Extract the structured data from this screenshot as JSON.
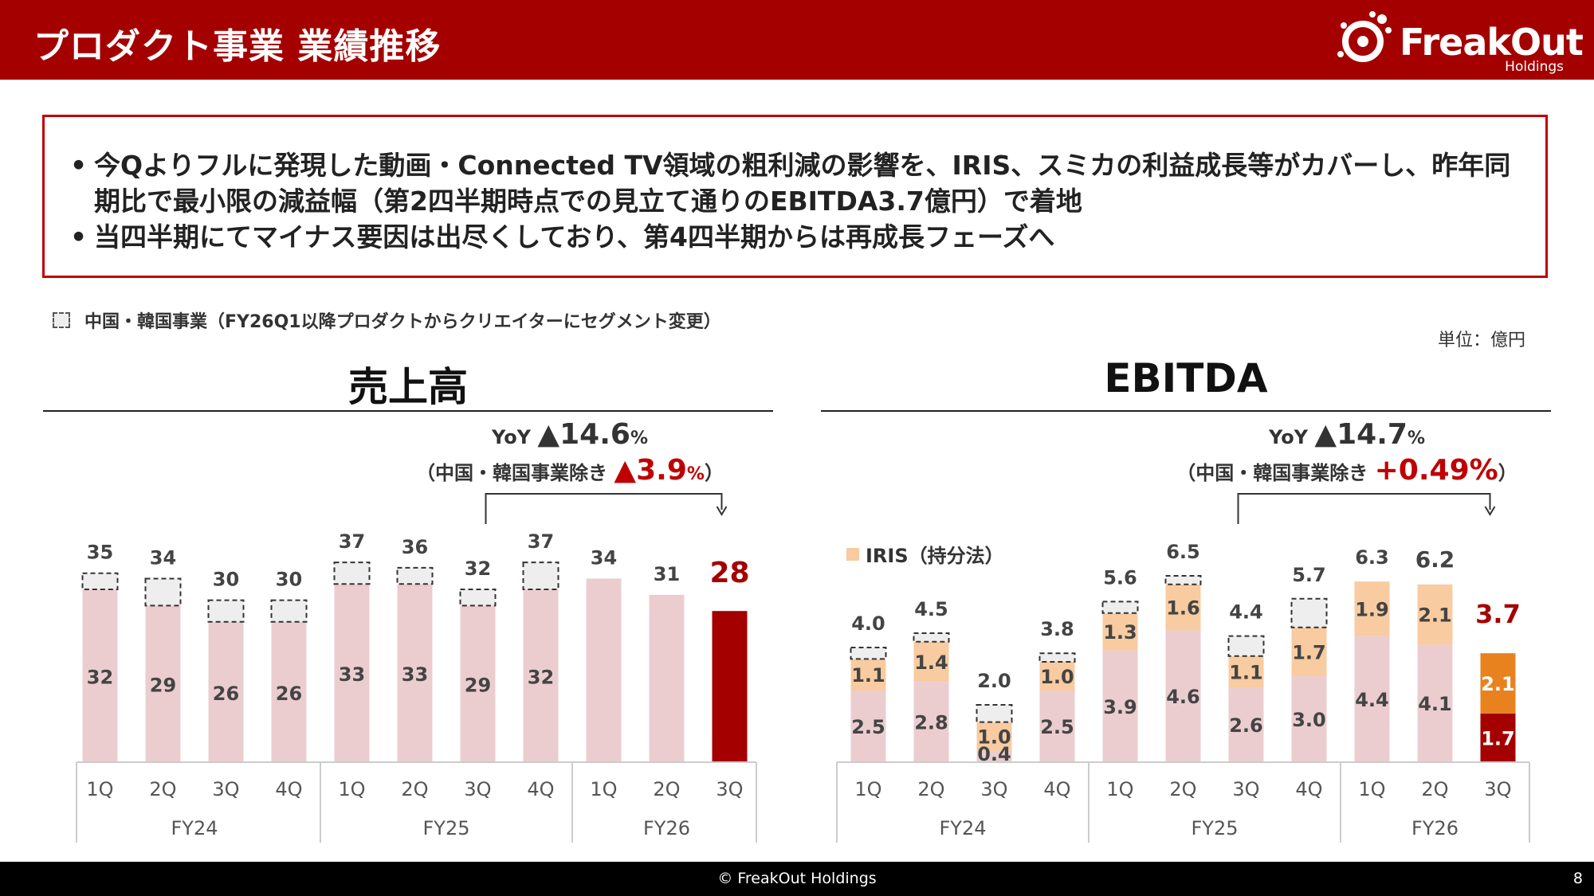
{
  "header": {
    "title": "プロダクト事業 業績推移",
    "logo_word": "FreakOut",
    "logo_sub": "Holdings"
  },
  "summary": {
    "bullets": [
      {
        "marker": "•",
        "text": "今Qよりフルに発現した動画・Connected TV領域の粗利減の影響を、IRIS、スミカの利益成長等がカバーし、昨年同期比で最小限の減益幅（第2四半期時点での見立て通りのEBITDA3.7億円）で着地"
      },
      {
        "marker": "•",
        "text": "当四半期にてマイナス要因は出尽くしており、第4四半期からは再成長フェーズへ"
      }
    ]
  },
  "legend_note": "中国・韓国事業（FY26Q1以降プロダクトからクリエイターにセグメント変更）",
  "unit": "単位：億円",
  "footer": {
    "copyright": "© FreakOut Holdings",
    "page": "8"
  },
  "chart_data": [
    {
      "type": "bar",
      "title": "売上高",
      "yoy": {
        "prefix": "YoY ",
        "value": "▲14.6",
        "unit": "%",
        "sub_prefix": "（中国・韓国事業除き ",
        "sub_value": "▲3.9",
        "sub_unit": "%",
        "sub_suffix": "）"
      },
      "categories": [
        "1Q",
        "2Q",
        "3Q",
        "4Q",
        "1Q",
        "2Q",
        "3Q",
        "4Q",
        "1Q",
        "2Q",
        "3Q"
      ],
      "groups": [
        {
          "label": "FY24",
          "count": 4
        },
        {
          "label": "FY25",
          "count": 4
        },
        {
          "label": "FY26",
          "count": 3
        }
      ],
      "series": [
        {
          "name": "",
          "values": [
            32,
            29,
            26,
            26,
            33,
            33,
            29,
            32,
            34,
            31,
            28
          ],
          "labels": [
            "32",
            "29",
            "26",
            "26",
            "33",
            "33",
            "29",
            "32",
            "",
            "",
            ""
          ]
        },
        {
          "name": "中国・韓国事業",
          "values": [
            3,
            5,
            4,
            4,
            4,
            3,
            3,
            5,
            0,
            0,
            0
          ]
        }
      ],
      "totals": [
        "35",
        "34",
        "30",
        "30",
        "37",
        "36",
        "32",
        "37",
        "34",
        "31",
        "28"
      ],
      "highlight_index": 10,
      "ylim": [
        0,
        40
      ],
      "colors": {
        "base": "#ebcdd0",
        "highlight": "#a50000",
        "china": "#eeeeee"
      }
    },
    {
      "type": "bar",
      "title": "EBITDA",
      "yoy": {
        "prefix": "YoY ",
        "value": "▲14.7",
        "unit": "%",
        "sub_prefix": "（中国・韓国事業除き ",
        "sub_value": "+0.49%",
        "sub_unit": "",
        "sub_suffix": "）"
      },
      "categories": [
        "1Q",
        "2Q",
        "3Q",
        "4Q",
        "1Q",
        "2Q",
        "3Q",
        "4Q",
        "1Q",
        "2Q",
        "3Q"
      ],
      "groups": [
        {
          "label": "FY24",
          "count": 4
        },
        {
          "label": "FY25",
          "count": 4
        },
        {
          "label": "FY26",
          "count": 3
        }
      ],
      "series": [
        {
          "name": "",
          "values": [
            2.5,
            2.8,
            0.4,
            2.5,
            3.9,
            4.6,
            2.6,
            3.0,
            4.4,
            4.1,
            1.7
          ],
          "labels": [
            "2.5",
            "2.8",
            "0.4",
            "2.5",
            "3.9",
            "4.6",
            "2.6",
            "3.0",
            "4.4",
            "4.1",
            "1.7"
          ]
        },
        {
          "name": "IRIS（持分法）",
          "values": [
            1.1,
            1.4,
            1.0,
            1.0,
            1.3,
            1.6,
            1.1,
            1.7,
            1.9,
            2.1,
            2.1
          ],
          "labels": [
            "1.1",
            "1.4",
            "1.0",
            "1.0",
            "1.3",
            "1.6",
            "1.1",
            "1.7",
            "1.9",
            "2.1",
            "2.1"
          ]
        },
        {
          "name": "中国・韓国事業",
          "values": [
            0.4,
            0.3,
            0.6,
            0.3,
            0.4,
            0.3,
            0.7,
            1.0,
            0,
            0,
            0
          ]
        }
      ],
      "totals": [
        "4.0",
        "4.5",
        "2.0",
        "3.8",
        "5.6",
        "6.5",
        "4.4",
        "5.7",
        "6.3",
        "6.2",
        "3.7"
      ],
      "highlight_index": 10,
      "ylim": [
        0,
        7.5
      ],
      "colors": {
        "base": "#ebcdd0",
        "iris": "#f8cba0",
        "china": "#eeeeee",
        "highlight_base": "#a50000",
        "highlight_iris": "#e8821e"
      }
    }
  ]
}
